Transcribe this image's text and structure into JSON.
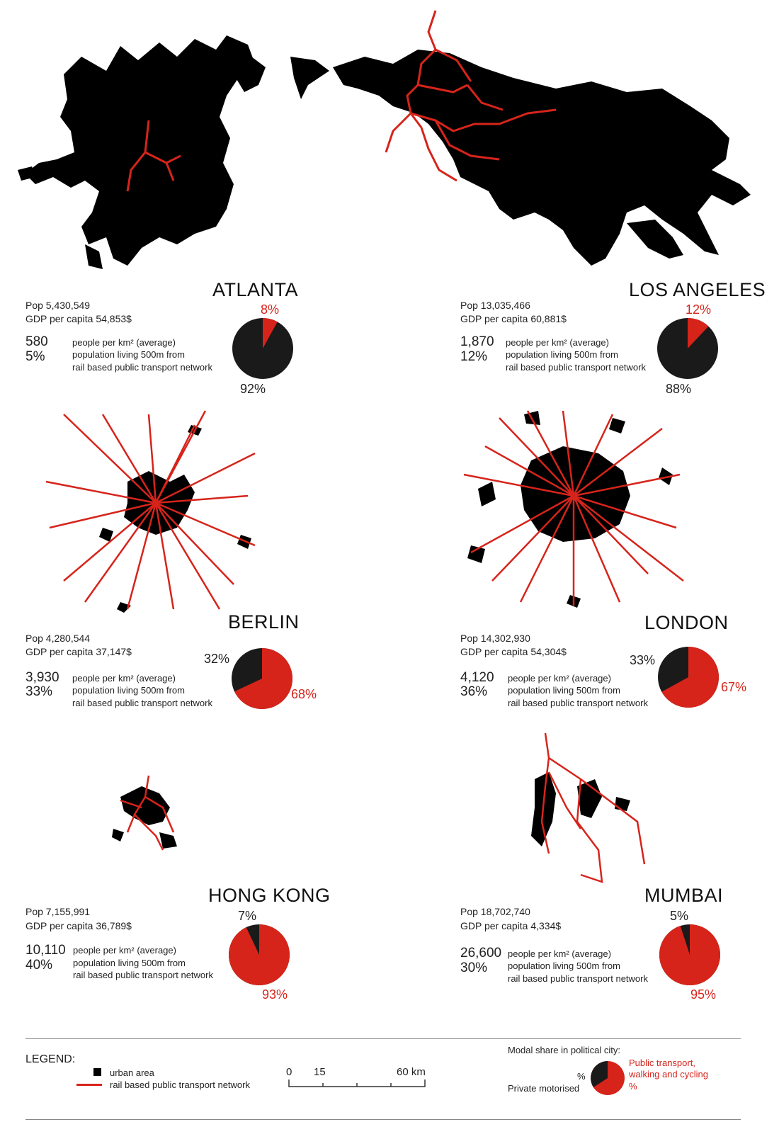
{
  "cities": [
    {
      "id": "atlanta",
      "name": "ATLANTA",
      "pop": "Pop 5,430,549",
      "gdp": "GDP per capita 54,853$",
      "density": "580",
      "density_label": "people per km² (average)",
      "pct_rail": "5%",
      "rail_label_1": "population living 500m from",
      "rail_label_2": "rail based public transport network",
      "public_label": "8%",
      "private_label": "92%"
    },
    {
      "id": "los-angeles",
      "name": "LOS ANGELES",
      "pop": "Pop 13,035,466",
      "gdp": "GDP per capita 60,881$",
      "density": "1,870",
      "density_label": "people per km² (average)",
      "pct_rail": "12%",
      "rail_label_1": "population living 500m from",
      "rail_label_2": "rail based public transport network",
      "public_label": "12%",
      "private_label": "88%"
    },
    {
      "id": "berlin",
      "name": "BERLIN",
      "pop": "Pop 4,280,544",
      "gdp": "GDP per capita 37,147$",
      "density": "3,930",
      "density_label": "people per km² (average)",
      "pct_rail": "33%",
      "rail_label_1": "population living 500m from",
      "rail_label_2": "rail based public transport network",
      "public_label": "68%",
      "private_label": "32%"
    },
    {
      "id": "london",
      "name": "LONDON",
      "pop": "Pop 14,302,930",
      "gdp": "GDP per capita 54,304$",
      "density": "4,120",
      "density_label": "people per km² (average)",
      "pct_rail": "36%",
      "rail_label_1": "population living 500m from",
      "rail_label_2": "rail based public transport network",
      "public_label": "67%",
      "private_label": "33%"
    },
    {
      "id": "hong-kong",
      "name": "HONG KONG",
      "pop": "Pop 7,155,991",
      "gdp": "GDP per capita 36,789$",
      "density": "10,110",
      "density_label": "people per km² (average)",
      "pct_rail": "40%",
      "rail_label_1": "population living 500m from",
      "rail_label_2": "rail based public transport network",
      "public_label": "93%",
      "private_label": "7%"
    },
    {
      "id": "mumbai",
      "name": "MUMBAI",
      "pop": "Pop 18,702,740",
      "gdp": "GDP per capita 4,334$",
      "density": "26,600",
      "density_label": "people per km² (average)",
      "pct_rail": "30%",
      "rail_label_1": "population living 500m from",
      "rail_label_2": "rail based public transport network",
      "public_label": "95%",
      "private_label": "5%"
    }
  ],
  "chart_data": [
    {
      "type": "pie",
      "title": "ATLANTA",
      "categories": [
        "Public transport, walking and cycling",
        "Private motorised"
      ],
      "values": [
        8,
        92
      ]
    },
    {
      "type": "pie",
      "title": "LOS ANGELES",
      "categories": [
        "Public transport, walking and cycling",
        "Private motorised"
      ],
      "values": [
        12,
        88
      ]
    },
    {
      "type": "pie",
      "title": "BERLIN",
      "categories": [
        "Public transport, walking and cycling",
        "Private motorised"
      ],
      "values": [
        68,
        32
      ]
    },
    {
      "type": "pie",
      "title": "LONDON",
      "categories": [
        "Public transport, walking and cycling",
        "Private motorised"
      ],
      "values": [
        67,
        33
      ]
    },
    {
      "type": "pie",
      "title": "HONG KONG",
      "categories": [
        "Public transport, walking and cycling",
        "Private motorised"
      ],
      "values": [
        93,
        7
      ]
    },
    {
      "type": "pie",
      "title": "MUMBAI",
      "categories": [
        "Public transport, walking and cycling",
        "Private motorised"
      ],
      "values": [
        95,
        5
      ]
    }
  ],
  "colors": {
    "public": "#d6241b",
    "private": "#1a1a1a",
    "urban": "#000000",
    "rail": "#d6241b"
  },
  "legend": {
    "title": "LEGEND:",
    "urban_area": "urban area",
    "rail_network": "rail based public transport network",
    "scale_0": "0",
    "scale_15": "15",
    "scale_60": "60 km",
    "modal_title": "Modal share in political city:",
    "private_pct": "%",
    "private_label": "Private motorised",
    "public_label_1": "Public transport,",
    "public_label_2": "walking and cycling",
    "public_pct": "%"
  }
}
